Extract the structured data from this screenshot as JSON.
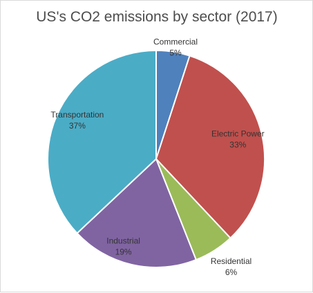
{
  "chart_data": {
    "type": "pie",
    "title": "US's CO2 emissions by sector (2017)",
    "slices": [
      {
        "label": "Commercial",
        "value": 5,
        "value_label": "5%",
        "color": "#4f81bd"
      },
      {
        "label": "Electric Power",
        "value": 33,
        "value_label": "33%",
        "color": "#c0504d"
      },
      {
        "label": "Residential",
        "value": 6,
        "value_label": "6%",
        "color": "#9bbb59"
      },
      {
        "label": "Industrial",
        "value": 19,
        "value_label": "19%",
        "color": "#8064a2"
      },
      {
        "label": "Transportation",
        "value": 37,
        "value_label": "37%",
        "color": "#4bacc6"
      }
    ],
    "start_angle": "12 o'clock",
    "direction": "clockwise",
    "legend": "none",
    "labels": "inside-or-near-slice"
  }
}
